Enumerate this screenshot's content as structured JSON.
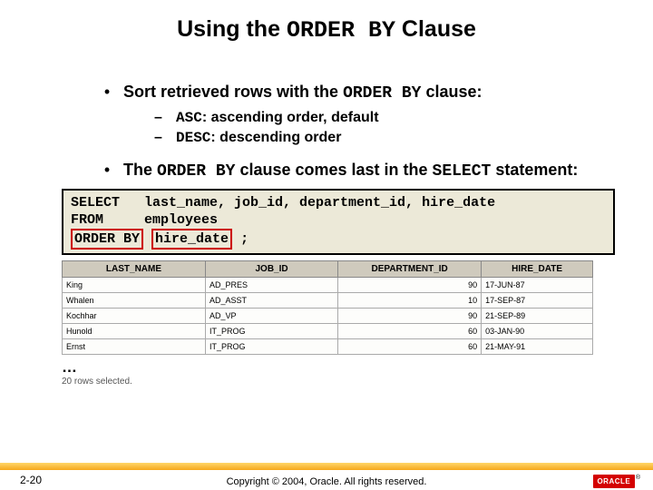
{
  "title": {
    "pre": "Using the ",
    "mono": "ORDER BY",
    "post": " Clause"
  },
  "bullets": [
    {
      "pre": "Sort retrieved rows with the ",
      "mono": "ORDER BY",
      "post": " clause:"
    },
    {
      "pre": "The ",
      "mono": "ORDER BY",
      "mid": " clause comes last in the ",
      "mono2": "SELECT",
      "post": " statement:"
    }
  ],
  "subbullets": [
    {
      "mono": "ASC",
      "post": ": ascending order, default"
    },
    {
      "mono": "DESC",
      "post": ": descending order"
    }
  ],
  "code": {
    "line1": "SELECT   last_name, job_id, department_id, hire_date",
    "line2": "FROM     employees",
    "line3a": "ORDER BY",
    "line3b": "hire_date",
    "line3c": ";"
  },
  "table": {
    "columns": [
      "LAST_NAME",
      "JOB_ID",
      "DEPARTMENT_ID",
      "HIRE_DATE"
    ],
    "col_widths": [
      "27%",
      "25%",
      "27%",
      "21%"
    ],
    "rows": [
      [
        "King",
        "AD_PRES",
        "90",
        "17-JUN-87"
      ],
      [
        "Whalen",
        "AD_ASST",
        "10",
        "17-SEP-87"
      ],
      [
        "Kochhar",
        "AD_VP",
        "90",
        "21-SEP-89"
      ],
      [
        "Hunold",
        "IT_PROG",
        "60",
        "03-JAN-90"
      ],
      [
        "Ernst",
        "IT_PROG",
        "60",
        "21-MAY-91"
      ]
    ],
    "numeric_cols": [
      2
    ]
  },
  "ellipsis": "…",
  "rows_note": "20 rows selected.",
  "footer": {
    "slide_num": "2-20",
    "copyright": "Copyright © 2004, Oracle. All rights reserved.",
    "logo_text": "ORACLE",
    "logo_reg": "®"
  },
  "colors": {
    "accent_top": "#ffd76a",
    "accent_bottom": "#f6a81c",
    "code_bg": "#ece9d8",
    "highlight_border": "#c00",
    "th_bg": "#cfcabd",
    "logo_bg": "#d40000"
  }
}
